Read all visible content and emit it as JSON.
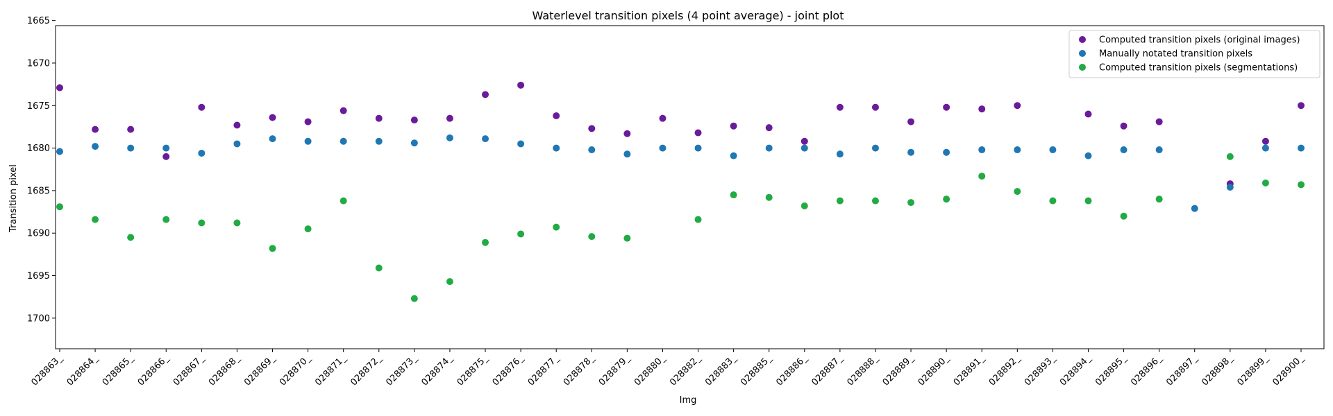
{
  "chart_data": {
    "type": "scatter",
    "title": "Waterlevel transition pixels (4 point average) - joint plot",
    "xlabel": "Img",
    "ylabel": "Transition pixel",
    "categories": [
      "028863_",
      "028864_",
      "028865_",
      "028866_",
      "028867_",
      "028868_",
      "028869_",
      "028870_",
      "028871_",
      "028872_",
      "028873_",
      "028874_",
      "028875_",
      "028876_",
      "028877_",
      "028878_",
      "028879_",
      "028880_",
      "028882_",
      "028883_",
      "028885_",
      "028886_",
      "028887_",
      "028888_",
      "028889_",
      "028890_",
      "028891_",
      "028892_",
      "028893_",
      "028894_",
      "028895_",
      "028896_",
      "028897_",
      "028898_",
      "028899_",
      "028900_"
    ],
    "ylim": [
      1665.6,
      1703.6
    ],
    "y_inverted": true,
    "yticks": [
      1665,
      1670,
      1675,
      1680,
      1685,
      1690,
      1695,
      1700
    ],
    "grid": false,
    "legend_position": "top-right",
    "series": [
      {
        "name": "Computed transition pixels (original images)",
        "color": "#6a1b9a",
        "values": [
          1672.9,
          1677.8,
          1677.8,
          1681.0,
          1675.2,
          1677.3,
          1676.4,
          1676.9,
          1675.6,
          1676.5,
          1676.7,
          1676.5,
          1673.7,
          1672.6,
          1676.2,
          1677.7,
          1678.3,
          1676.5,
          1678.2,
          1677.4,
          1677.6,
          1679.2,
          1675.2,
          1675.2,
          1676.9,
          1675.2,
          1675.4,
          1675.0,
          null,
          1676.0,
          1677.4,
          1676.9,
          null,
          1684.2,
          1679.2,
          1675.0
        ]
      },
      {
        "name": "Manually notated transition pixels",
        "color": "#1f77b4",
        "values": [
          1680.4,
          1679.8,
          1680.0,
          1680.0,
          1680.6,
          1679.5,
          1678.9,
          1679.2,
          1679.2,
          1679.2,
          1679.4,
          1678.8,
          1678.9,
          1679.5,
          1680.0,
          1680.2,
          1680.7,
          1680.0,
          1680.0,
          1680.9,
          1680.0,
          1680.0,
          1680.7,
          1680.0,
          1680.5,
          1680.5,
          1680.2,
          1680.2,
          1680.2,
          1680.9,
          1680.2,
          1680.2,
          1687.1,
          1684.6,
          1680.0,
          1680.0
        ]
      },
      {
        "name": "Computed transition pixels (segmentations)",
        "color": "#22aa44",
        "values": [
          1686.9,
          1688.4,
          1690.5,
          1688.4,
          1688.8,
          1688.8,
          1691.8,
          1689.5,
          1686.2,
          1694.1,
          1697.7,
          1695.7,
          1691.1,
          1690.1,
          1689.3,
          1690.4,
          1690.6,
          null,
          1688.4,
          1685.5,
          1685.8,
          1686.8,
          1686.2,
          1686.2,
          1686.4,
          1686.0,
          1683.3,
          1685.1,
          1686.2,
          1686.2,
          1688.0,
          1686.0,
          null,
          1681.0,
          1684.1,
          1684.3
        ]
      }
    ]
  }
}
